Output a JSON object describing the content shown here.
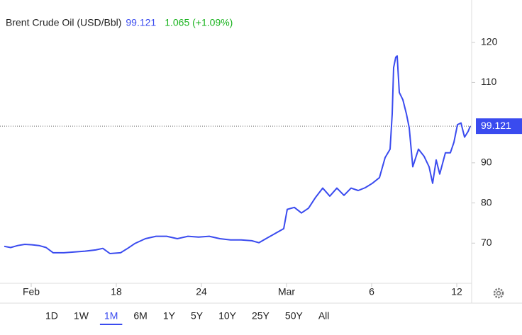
{
  "chart_data": {
    "type": "line",
    "title": "Brent Crude Oil (USD/Bbl)",
    "last_value": 99.121,
    "change": "1.065 (+1.09%)",
    "xlim": [
      -2.2,
      31.05
    ],
    "ylim": [
      60,
      127
    ],
    "xticks": [
      {
        "value": 0,
        "label": "Feb"
      },
      {
        "value": 6,
        "label": "18"
      },
      {
        "value": 12,
        "label": "24"
      },
      {
        "value": 18,
        "label": "Mar"
      },
      {
        "value": 24,
        "label": "6"
      },
      {
        "value": 30,
        "label": "12"
      }
    ],
    "yticks": [
      70,
      80,
      90,
      110,
      120
    ],
    "series": [
      {
        "name": "Brent Crude Oil",
        "color": "#3a4bef",
        "x": [
          -1.9,
          -1.45,
          -0.95,
          -0.45,
          0.05,
          0.55,
          1.05,
          1.55,
          2.3,
          3.05,
          3.8,
          4.55,
          5.05,
          5.55,
          6.3,
          6.8,
          7.3,
          8.05,
          8.8,
          9.55,
          10.3,
          11.05,
          11.8,
          12.55,
          13.3,
          14.05,
          14.8,
          15.55,
          16.05,
          16.55,
          17.3,
          17.8,
          18.05,
          18.55,
          19.05,
          19.55,
          20.05,
          20.55,
          21.05,
          21.55,
          22.05,
          22.55,
          23.05,
          23.55,
          24.05,
          24.55,
          24.95,
          25.3,
          25.45,
          25.55,
          25.7,
          25.8,
          25.95,
          26.2,
          26.45,
          26.65,
          26.9,
          27.3,
          27.7,
          28.05,
          28.3,
          28.55,
          28.8,
          29.2,
          29.55,
          29.8,
          30.05,
          30.3,
          30.55,
          30.8,
          30.95
        ],
        "values": [
          69.2,
          68.9,
          69.4,
          69.7,
          69.6,
          69.4,
          68.9,
          67.6,
          67.6,
          67.8,
          68.0,
          68.3,
          68.7,
          67.4,
          67.6,
          68.7,
          69.9,
          71.1,
          71.7,
          71.7,
          71.1,
          71.7,
          71.5,
          71.7,
          71.1,
          70.8,
          70.8,
          70.6,
          70.1,
          71.1,
          72.6,
          73.6,
          78.4,
          78.9,
          77.5,
          78.7,
          81.4,
          83.7,
          81.7,
          83.7,
          81.9,
          83.7,
          83.1,
          83.8,
          84.9,
          86.3,
          91.3,
          93.4,
          102.2,
          113.7,
          116.3,
          116.6,
          107.5,
          105.7,
          102.2,
          98.7,
          89.0,
          93.4,
          91.6,
          89.0,
          84.9,
          90.7,
          87.2,
          92.5,
          92.5,
          95.1,
          99.5,
          99.9,
          96.4,
          97.8,
          99.1
        ]
      }
    ],
    "ranges": [
      "1D",
      "1W",
      "1M",
      "6M",
      "1Y",
      "5Y",
      "10Y",
      "25Y",
      "50Y",
      "All"
    ],
    "selected_range": 2
  }
}
